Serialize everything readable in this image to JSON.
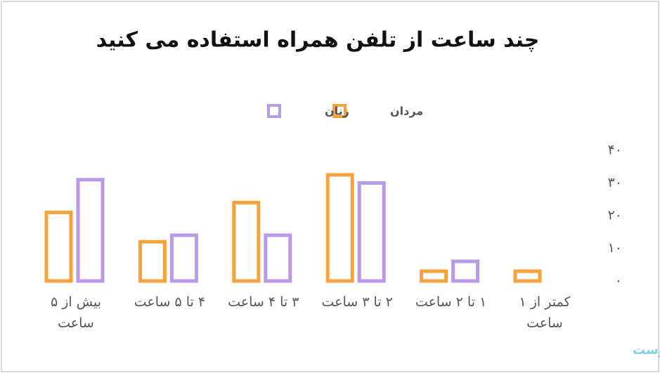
{
  "chart_data": {
    "type": "bar",
    "title": "چند ساعت از تلفن همراه استفاده می کنید",
    "categories": [
      "کمتر از ۱ ساعت",
      "۱ تا ۲ ساعت",
      "۲ تا ۳ ساعت",
      "۳ تا ۴ ساعت",
      "۴ تا ۵ ساعت",
      "بیش از ۵ ساعت"
    ],
    "series": [
      {
        "name": "مردان",
        "color": "#f7a23b",
        "values": [
          3,
          3,
          32.5,
          24,
          12,
          21
        ]
      },
      {
        "name": "زنان",
        "color": "#b89ae6",
        "values": [
          0,
          6,
          30,
          14,
          14,
          31
        ]
      }
    ],
    "ylim": [
      0,
      40
    ],
    "yticks": [
      {
        "value": 0,
        "label": "۰"
      },
      {
        "value": 10,
        "label": "۱۰"
      },
      {
        "value": 20,
        "label": "۲۰"
      },
      {
        "value": 30,
        "label": "۳۰"
      },
      {
        "value": 40,
        "label": "۴۰"
      }
    ],
    "grid": false,
    "watermark": "بیوست"
  }
}
